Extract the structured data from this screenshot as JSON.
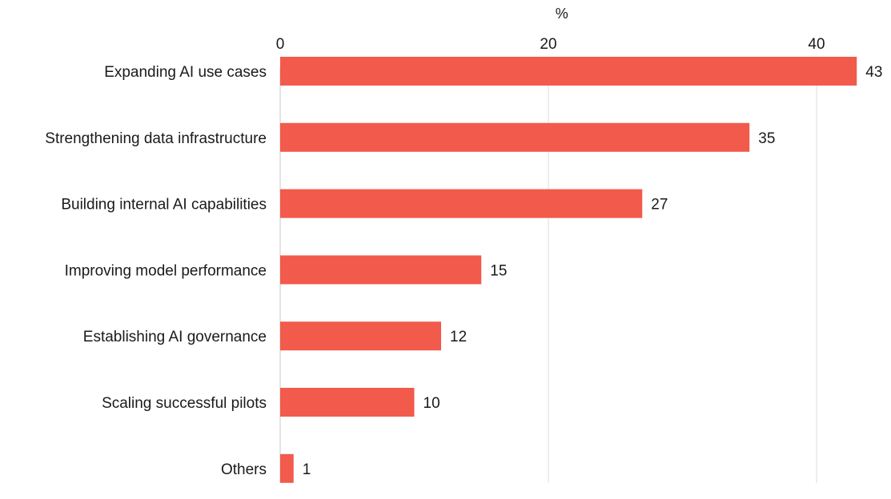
{
  "chart_data": {
    "type": "bar",
    "orientation": "horizontal",
    "xlabel": "%",
    "xlim": [
      0,
      43
    ],
    "ticks": [
      0,
      20,
      40
    ],
    "tick_labels": [
      "0",
      "20",
      "40"
    ],
    "categories": [
      "Expanding AI use cases",
      "Strengthening data infrastructure",
      "Building internal AI capabilities",
      "Improving model performance",
      "Establishing AI governance",
      "Scaling successful pilots",
      "Others"
    ],
    "values": [
      43,
      35,
      27,
      15,
      12,
      10,
      1
    ],
    "value_labels": [
      "43",
      "35",
      "27",
      "15",
      "12",
      "10",
      "1"
    ],
    "bar_color": "#f25a4c",
    "grid": true,
    "legend": "none"
  }
}
